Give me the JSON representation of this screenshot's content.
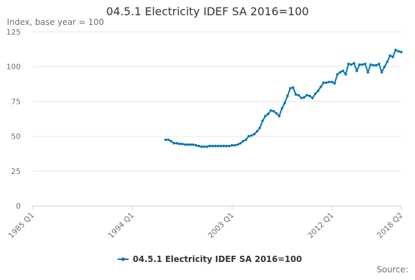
{
  "chart_data": {
    "type": "line",
    "title": "04.5.1 Electricity IDEF SA 2016=100",
    "y_label": "Index, base year = 100",
    "source": "Source:",
    "categories": [
      "1985 Q1",
      null,
      null,
      null,
      null,
      null,
      null,
      null,
      null,
      null,
      null,
      null,
      null,
      null,
      null,
      null,
      null,
      null,
      null,
      null,
      null,
      null,
      null,
      null,
      null,
      null,
      null,
      null,
      null,
      null,
      null,
      null,
      null,
      null,
      null,
      null,
      "1994 Q1",
      null,
      null,
      null,
      null,
      null,
      null,
      null,
      null,
      null,
      null,
      null,
      null,
      null,
      null,
      null,
      null,
      null,
      null,
      null,
      null,
      null,
      null,
      null,
      null,
      null,
      null,
      null,
      null,
      null,
      null,
      null,
      null,
      null,
      null,
      null,
      "2003 Q1",
      null,
      null,
      null,
      null,
      null,
      null,
      null,
      null,
      null,
      null,
      null,
      null,
      null,
      null,
      null,
      null,
      null,
      null,
      null,
      null,
      null,
      null,
      null,
      null,
      null,
      null,
      null,
      null,
      null,
      null,
      null,
      null,
      null,
      null,
      null,
      "2012 Q1",
      null,
      null,
      null,
      null,
      null,
      null,
      null,
      null,
      null,
      null,
      null,
      null,
      null,
      null,
      null,
      null,
      null,
      null,
      null,
      null,
      null,
      null,
      null,
      null,
      "2018 Q2"
    ],
    "series": [
      {
        "name": "04.5.1 Electricity IDEF SA 2016=100",
        "color": "#0075b0",
        "values": [
          null,
          null,
          null,
          null,
          null,
          null,
          null,
          null,
          null,
          null,
          null,
          null,
          null,
          null,
          null,
          null,
          null,
          null,
          null,
          null,
          null,
          null,
          null,
          null,
          null,
          null,
          null,
          null,
          null,
          null,
          null,
          null,
          null,
          null,
          null,
          null,
          null,
          null,
          null,
          null,
          null,
          null,
          null,
          null,
          null,
          null,
          null,
          null,
          47.5,
          47.5,
          46.5,
          45,
          45,
          44.5,
          44.5,
          44,
          44,
          44,
          44,
          43.5,
          43,
          42.5,
          42.5,
          42.5,
          43,
          43,
          43,
          43,
          43,
          43,
          43,
          43,
          43.5,
          43.5,
          44,
          45,
          46.5,
          47.5,
          50,
          50.5,
          51.5,
          53.5,
          56,
          61,
          64.5,
          66,
          68.5,
          68,
          66.5,
          64.5,
          70,
          74,
          79,
          84.5,
          85,
          80,
          79.5,
          77.5,
          78,
          79.5,
          79,
          77.5,
          80.5,
          82.5,
          85.5,
          88.5,
          88.5,
          89,
          89,
          88,
          94.5,
          96,
          97,
          94.5,
          102,
          101.5,
          102.5,
          97,
          101.5,
          101.5,
          102,
          96,
          101.5,
          101,
          101,
          102,
          96,
          100,
          103.5,
          108,
          107,
          112,
          111,
          110.5
        ]
      }
    ],
    "ylim": [
      0,
      125
    ],
    "yticks": [
      0,
      25,
      50,
      75,
      100,
      125
    ],
    "grid": true,
    "legend": "bottom"
  }
}
